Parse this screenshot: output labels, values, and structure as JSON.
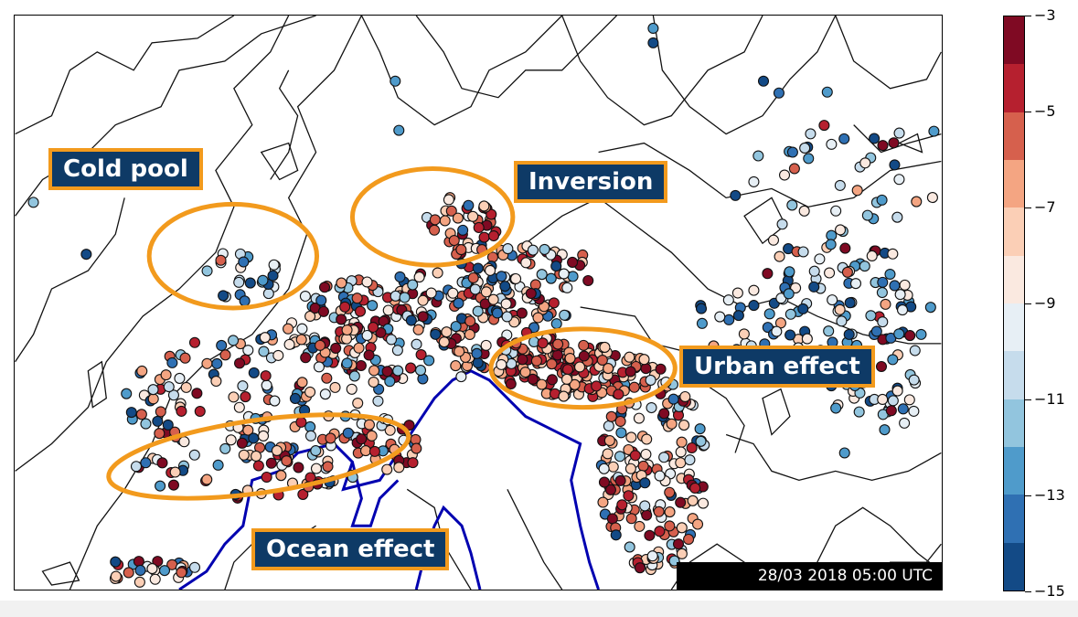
{
  "map": {
    "callouts": {
      "cold_pool": "Cold pool",
      "inversion": "Inversion",
      "urban_effect": "Urban effect",
      "ocean_effect": "Ocean effect"
    },
    "timestamp": "28/03 2018 05:00 UTC",
    "highlight_color": "#f29a1d",
    "callout_bg_color": "#0e3a66",
    "coastline_color": "#0000b0"
  },
  "colorbar": {
    "colors": [
      "#7f0a23",
      "#b6202f",
      "#d6604d",
      "#f4a582",
      "#fbcfb6",
      "#fae9e0",
      "#e7eff5",
      "#c6dcec",
      "#92c5de",
      "#4f9bcb",
      "#2f70b3",
      "#134a86"
    ],
    "tick_labels": [
      "−3",
      "−5",
      "−7",
      "−9",
      "−11",
      "−13",
      "−15"
    ]
  }
}
